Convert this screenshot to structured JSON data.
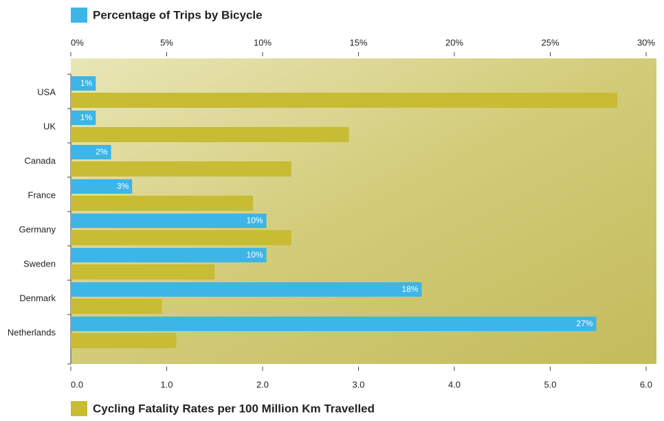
{
  "chart_data": {
    "type": "bar",
    "orientation": "horizontal",
    "categories": [
      "USA",
      "UK",
      "Canada",
      "France",
      "Germany",
      "Sweden",
      "Denmark",
      "Netherlands"
    ],
    "series": [
      {
        "name": "Percentage of Trips by Bicycle",
        "color": "#3db5e6",
        "axis": "x",
        "values": [
          1.3,
          1.3,
          2.1,
          3.2,
          10.2,
          10.2,
          18.3,
          27.4
        ],
        "value_labels": [
          "1%",
          "1%",
          "2%",
          "3%",
          "10%",
          "10%",
          "18%",
          "27%"
        ]
      },
      {
        "name": "Cycling Fatality Rates per 100 Million Km Travelled",
        "color": "#c7bc33",
        "axis": "x2",
        "values": [
          5.7,
          2.9,
          2.3,
          1.9,
          2.3,
          1.5,
          0.95,
          1.1
        ]
      }
    ],
    "xlim": [
      0,
      30
    ],
    "xticks": [
      {
        "value": 0,
        "label": "0%"
      },
      {
        "value": 5,
        "label": "5%"
      },
      {
        "value": 10,
        "label": "10%"
      },
      {
        "value": 15,
        "label": "15%"
      },
      {
        "value": 20,
        "label": "20%"
      },
      {
        "value": 25,
        "label": "25%"
      },
      {
        "value": 30,
        "label": "30%"
      }
    ],
    "x2lim": [
      0,
      6
    ],
    "x2ticks": [
      {
        "value": 0,
        "label": "0.0"
      },
      {
        "value": 1,
        "label": "1.0"
      },
      {
        "value": 2,
        "label": "2.0"
      },
      {
        "value": 3,
        "label": "3.0"
      },
      {
        "value": 4,
        "label": "4.0"
      },
      {
        "value": 5,
        "label": "5.0"
      },
      {
        "value": 6,
        "label": "6.0"
      }
    ]
  }
}
